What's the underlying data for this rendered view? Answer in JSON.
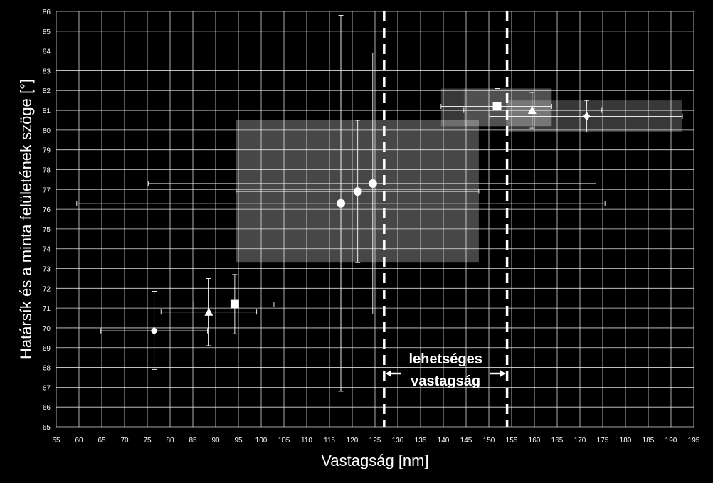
{
  "chart_data": {
    "type": "scatter",
    "xlabel": "Vastagság [nm]",
    "ylabel": "Határsík és a minta felületének szöge [°]",
    "xlim": [
      55,
      195
    ],
    "ylim": [
      65,
      86
    ],
    "x_ticks": [
      55,
      60,
      65,
      70,
      75,
      80,
      85,
      90,
      95,
      100,
      105,
      110,
      115,
      120,
      125,
      130,
      135,
      140,
      145,
      150,
      155,
      160,
      165,
      170,
      175,
      180,
      185,
      190,
      195
    ],
    "y_ticks": [
      65,
      66,
      67,
      68,
      69,
      70,
      71,
      72,
      73,
      74,
      75,
      76,
      77,
      78,
      79,
      80,
      81,
      82,
      83,
      84,
      85,
      86
    ],
    "grid": true,
    "background": "#000000",
    "foreground": "#ffffff",
    "shaded_regions": [
      {
        "x": [
          94.5,
          147.8
        ],
        "y": [
          73.3,
          80.5
        ],
        "opacity": 0.28
      },
      {
        "x": [
          139.5,
          163.8
        ],
        "y": [
          80.2,
          82.1
        ],
        "opacity": 0.22
      },
      {
        "x": [
          144.5,
          163.8
        ],
        "y": [
          80.2,
          82.1
        ],
        "opacity": 0.12
      },
      {
        "x": [
          153.8,
          192.5
        ],
        "y": [
          79.9,
          81.5
        ],
        "opacity": 0.22
      }
    ],
    "vertical_lines": [
      127.0,
      154.0
    ],
    "annotation": {
      "lines": [
        "lehetséges",
        "vastagság"
      ],
      "x_range": [
        127.0,
        154.0
      ]
    },
    "series": [
      {
        "marker": "diamond",
        "points": [
          {
            "x": 76.5,
            "y": 69.85,
            "xerr": [
              64.8,
              88.2
            ],
            "yerr": [
              67.9,
              71.85
            ]
          },
          {
            "x": 171.5,
            "y": 80.7,
            "xerr": [
              150.2,
              192.5
            ],
            "yerr": [
              79.9,
              81.5
            ]
          }
        ]
      },
      {
        "marker": "triangle",
        "points": [
          {
            "x": 88.5,
            "y": 70.8,
            "xerr": [
              78.0,
              99.0
            ],
            "yerr": [
              69.1,
              72.5
            ]
          },
          {
            "x": 159.5,
            "y": 81.0,
            "xerr": [
              144.5,
              174.8
            ],
            "yerr": [
              80.1,
              81.9
            ]
          }
        ]
      },
      {
        "marker": "square",
        "points": [
          {
            "x": 94.2,
            "y": 71.2,
            "xerr": [
              85.2,
              102.8
            ],
            "yerr": [
              69.7,
              72.7
            ]
          },
          {
            "x": 151.8,
            "y": 81.2,
            "xerr": [
              139.5,
              163.8
            ],
            "yerr": [
              80.3,
              82.1
            ]
          }
        ]
      },
      {
        "marker": "circle",
        "points": [
          {
            "x": 117.5,
            "y": 76.3,
            "xerr": [
              59.5,
              175.5
            ],
            "yerr": [
              66.8,
              85.8
            ]
          },
          {
            "x": 121.2,
            "y": 76.9,
            "xerr": [
              94.5,
              147.8
            ],
            "yerr": [
              73.3,
              80.5
            ]
          },
          {
            "x": 124.5,
            "y": 77.3,
            "xerr": [
              75.2,
              173.5
            ],
            "yerr": [
              70.7,
              83.9
            ]
          }
        ]
      }
    ]
  }
}
